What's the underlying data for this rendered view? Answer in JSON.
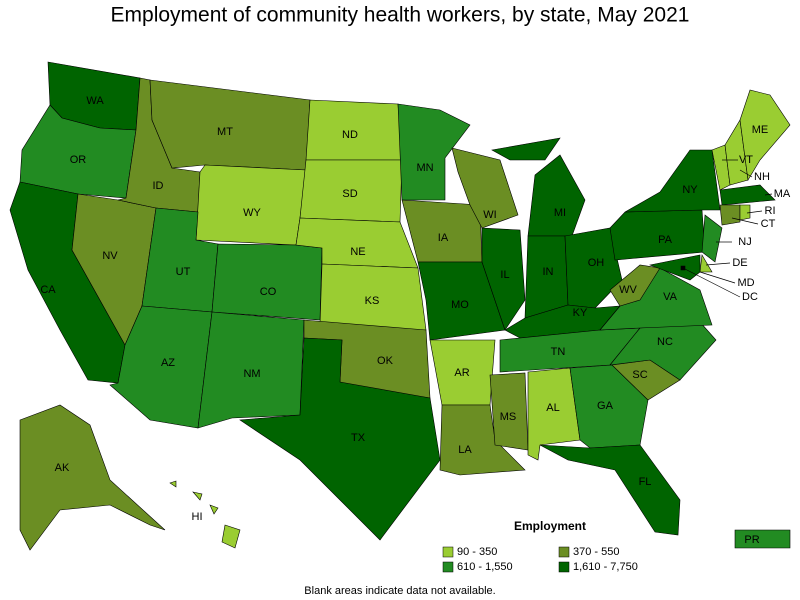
{
  "title": "Employment of community health workers, by state, May 2021",
  "legend": {
    "title": "Employment",
    "items": [
      {
        "label": "90 - 350",
        "color": "#9acd32"
      },
      {
        "label": "370 - 550",
        "color": "#6b8e23"
      },
      {
        "label": "610 - 1,550",
        "color": "#228b22"
      },
      {
        "label": "1,610 - 7,750",
        "color": "#006400"
      }
    ]
  },
  "note": "Blank areas indicate data not available.",
  "states": [
    {
      "label": "WA",
      "color": "#006400"
    },
    {
      "label": "OR",
      "color": "#228b22"
    },
    {
      "label": "CA",
      "color": "#006400"
    },
    {
      "label": "NV",
      "color": "#6b8e23"
    },
    {
      "label": "ID",
      "color": "#6b8e23"
    },
    {
      "label": "MT",
      "color": "#6b8e23"
    },
    {
      "label": "WY",
      "color": "#9acd32"
    },
    {
      "label": "UT",
      "color": "#228b22"
    },
    {
      "label": "CO",
      "color": "#228b22"
    },
    {
      "label": "AZ",
      "color": "#228b22"
    },
    {
      "label": "NM",
      "color": "#228b22"
    },
    {
      "label": "ND",
      "color": "#9acd32"
    },
    {
      "label": "SD",
      "color": "#9acd32"
    },
    {
      "label": "NE",
      "color": "#9acd32"
    },
    {
      "label": "KS",
      "color": "#9acd32"
    },
    {
      "label": "OK",
      "color": "#6b8e23"
    },
    {
      "label": "TX",
      "color": "#006400"
    },
    {
      "label": "MN",
      "color": "#228b22"
    },
    {
      "label": "IA",
      "color": "#6b8e23"
    },
    {
      "label": "MO",
      "color": "#006400"
    },
    {
      "label": "AR",
      "color": "#9acd32"
    },
    {
      "label": "LA",
      "color": "#6b8e23"
    },
    {
      "label": "WI",
      "color": "#6b8e23"
    },
    {
      "label": "IL",
      "color": "#006400"
    },
    {
      "label": "MI",
      "color": "#006400"
    },
    {
      "label": "IN",
      "color": "#006400"
    },
    {
      "label": "OH",
      "color": "#006400"
    },
    {
      "label": "KY",
      "color": "#006400"
    },
    {
      "label": "TN",
      "color": "#228b22"
    },
    {
      "label": "MS",
      "color": "#6b8e23"
    },
    {
      "label": "AL",
      "color": "#9acd32"
    },
    {
      "label": "GA",
      "color": "#228b22"
    },
    {
      "label": "FL",
      "color": "#006400"
    },
    {
      "label": "SC",
      "color": "#6b8e23"
    },
    {
      "label": "NC",
      "color": "#228b22"
    },
    {
      "label": "VA",
      "color": "#228b22"
    },
    {
      "label": "WV",
      "color": "#6b8e23"
    },
    {
      "label": "PA",
      "color": "#006400"
    },
    {
      "label": "NY",
      "color": "#006400"
    },
    {
      "label": "NJ",
      "color": "#228b22"
    },
    {
      "label": "DE",
      "color": "#9acd32"
    },
    {
      "label": "MD",
      "color": "#006400"
    },
    {
      "label": "DC",
      "color": "#000000"
    },
    {
      "label": "VT",
      "color": "#9acd32"
    },
    {
      "label": "NH",
      "color": "#9acd32"
    },
    {
      "label": "ME",
      "color": "#9acd32"
    },
    {
      "label": "MA",
      "color": "#006400"
    },
    {
      "label": "CT",
      "color": "#6b8e23"
    },
    {
      "label": "RI",
      "color": "#9acd32"
    },
    {
      "label": "AK",
      "color": "#6b8e23"
    },
    {
      "label": "HI",
      "color": "#9acd32"
    },
    {
      "label": "PR",
      "color": "#228b22"
    }
  ]
}
